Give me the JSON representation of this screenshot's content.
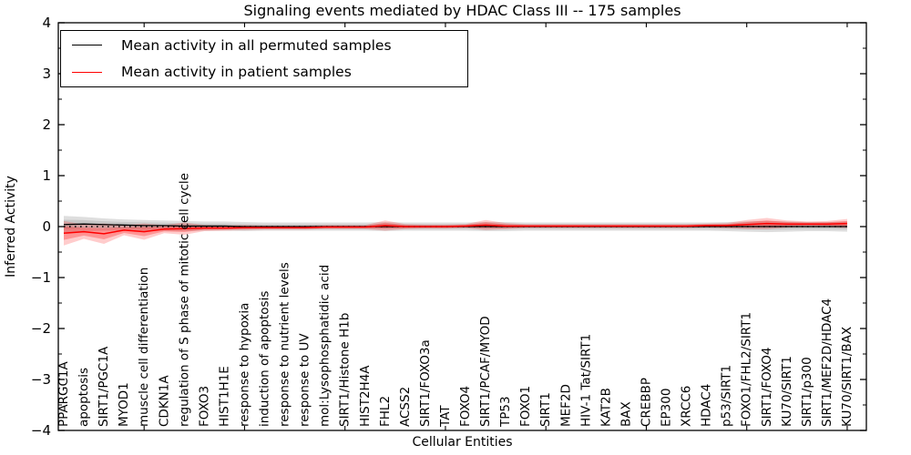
{
  "chart_data": {
    "type": "line",
    "title": "Signaling events mediated by HDAC Class III -- 175 samples",
    "xlabel": "Cellular Entities",
    "ylabel": "Inferred Activity",
    "ylim": [
      -4,
      4
    ],
    "grid": false,
    "legend_position": "upper left",
    "zero_line": {
      "style": "dotted",
      "color": "#000000",
      "value": 0
    },
    "yticks": {
      "values": [
        -4,
        -3,
        -2,
        -1,
        0,
        1,
        2,
        3,
        4
      ],
      "labels": [
        "−4",
        "−3",
        "−2",
        "−1",
        "0",
        "1",
        "2",
        "3",
        "4"
      ],
      "minor_step": 0.5
    },
    "xticks_major_every": 5,
    "categories": [
      "PPARGC1A",
      "apoptosis",
      "SIRT1/PGC1A",
      "MYOD1",
      "muscle cell differentiation",
      "CDKN1A",
      "regulation of S phase of mitotic cell cycle",
      "FOXO3",
      "HIST1H1E",
      "response to hypoxia",
      "induction of apoptosis",
      "response to nutrient levels",
      "response to UV",
      "mol:Lysophosphatidic acid",
      "SIRT1/Histone H1b",
      "HIST2H4A",
      "FHL2",
      "ACSS2",
      "SIRT1/FOXO3a",
      "TAT",
      "FOXO4",
      "SIRT1/PCAF/MYOD",
      "TP53",
      "FOXO1",
      "SIRT1",
      "MEF2D",
      "HIV-1 Tat/SIRT1",
      "KAT2B",
      "BAX",
      "CREBBP",
      "EP300",
      "XRCC6",
      "HDAC4",
      "p53/SIRT1",
      "FOXO1/FHL2/SIRT1",
      "SIRT1/FOXO4",
      "KU70/SIRT1",
      "SIRT1/p300",
      "SIRT1/MEF2D/HDAC4",
      "KU70/SIRT1/BAX"
    ],
    "series": [
      {
        "name": "Mean activity in all permuted samples",
        "color": "#000000",
        "values": [
          0.04,
          0.05,
          0.04,
          0.03,
          0.02,
          0.02,
          0.01,
          0.01,
          0.01,
          0.0,
          0.0,
          0.0,
          0.0,
          0.0,
          0.0,
          0.0,
          0.0,
          0.0,
          0.0,
          0.0,
          0.0,
          0.0,
          0.0,
          0.0,
          0.0,
          0.0,
          0.0,
          0.0,
          0.0,
          0.0,
          0.0,
          0.0,
          0.0,
          0.0,
          0.0,
          0.0,
          0.0,
          0.0,
          0.0,
          0.0
        ],
        "band_halfwidth": [
          0.17,
          0.14,
          0.12,
          0.11,
          0.11,
          0.1,
          0.1,
          0.09,
          0.09,
          0.09,
          0.08,
          0.08,
          0.08,
          0.08,
          0.08,
          0.08,
          0.09,
          0.08,
          0.08,
          0.08,
          0.08,
          0.09,
          0.09,
          0.08,
          0.08,
          0.08,
          0.08,
          0.08,
          0.08,
          0.08,
          0.08,
          0.08,
          0.08,
          0.09,
          0.1,
          0.11,
          0.1,
          0.09,
          0.09,
          0.1
        ]
      },
      {
        "name": "Mean activity in patient samples",
        "color": "#ff0000",
        "values": [
          -0.13,
          -0.1,
          -0.14,
          -0.07,
          -0.1,
          -0.05,
          -0.04,
          -0.03,
          -0.03,
          -0.02,
          -0.02,
          -0.02,
          -0.02,
          -0.01,
          -0.01,
          -0.01,
          0.02,
          0.0,
          0.0,
          0.0,
          0.01,
          0.03,
          0.01,
          0.01,
          0.01,
          0.01,
          0.01,
          0.01,
          0.01,
          0.01,
          0.01,
          0.01,
          0.02,
          0.02,
          0.04,
          0.06,
          0.05,
          0.05,
          0.05,
          0.06
        ],
        "band_halfwidth": [
          0.24,
          0.14,
          0.2,
          0.1,
          0.16,
          0.08,
          0.12,
          0.06,
          0.05,
          0.05,
          0.04,
          0.04,
          0.04,
          0.04,
          0.04,
          0.04,
          0.1,
          0.05,
          0.04,
          0.04,
          0.04,
          0.1,
          0.06,
          0.04,
          0.04,
          0.04,
          0.04,
          0.04,
          0.04,
          0.04,
          0.04,
          0.04,
          0.04,
          0.05,
          0.09,
          0.11,
          0.07,
          0.05,
          0.06,
          0.09
        ]
      }
    ]
  }
}
